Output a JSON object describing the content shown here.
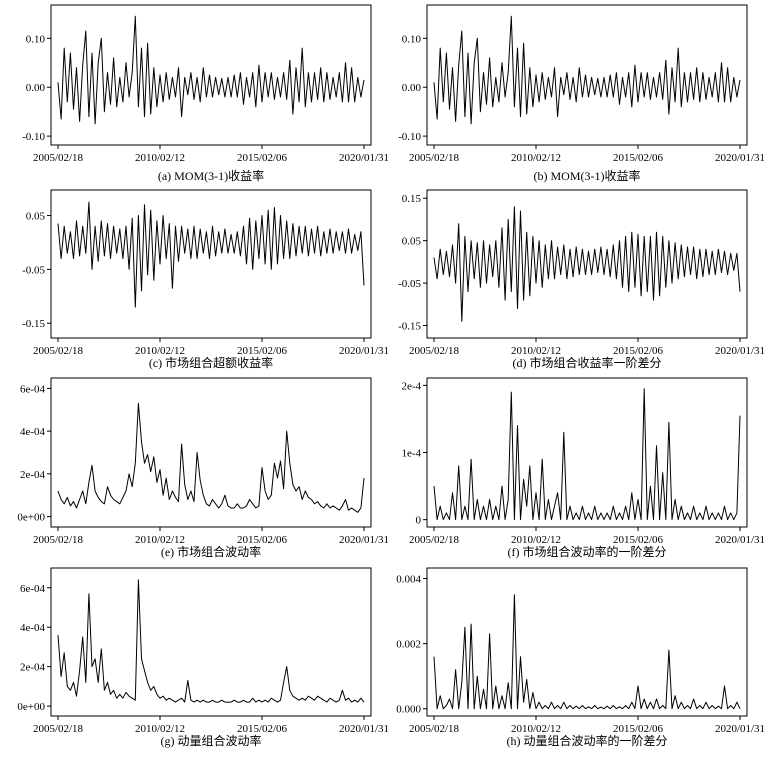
{
  "chart_data": [
    {
      "type": "line",
      "id": "a",
      "caption": "(a) MOM(3-1)收益率",
      "x_ticks": [
        "2005/02/18",
        "2010/02/12",
        "2015/02/06",
        "2020/01/31"
      ],
      "y_ticks": [
        {
          "v": -0.1,
          "label": "-0.10"
        },
        {
          "v": 0.0,
          "label": "0.00"
        },
        {
          "v": 0.1,
          "label": "0.10"
        }
      ],
      "ylim": [
        -0.11,
        0.16
      ],
      "series": [
        {
          "values": [
            0.01,
            -0.065,
            0.08,
            -0.03,
            0.07,
            -0.045,
            0.04,
            -0.07,
            0.045,
            0.115,
            -0.06,
            0.07,
            -0.075,
            0.05,
            0.1,
            -0.05,
            0.03,
            -0.035,
            0.06,
            -0.04,
            0.02,
            -0.03,
            0.05,
            -0.02,
            0.03,
            0.145,
            -0.04,
            0.08,
            -0.06,
            0.09,
            -0.055,
            0.04,
            -0.04,
            0.025,
            -0.03,
            0.03,
            -0.025,
            0.02,
            -0.02,
            0.04,
            -0.06,
            0.02,
            -0.015,
            0.03,
            -0.025,
            0.02,
            -0.03,
            0.04,
            -0.02,
            0.025,
            -0.02,
            0.02,
            -0.015,
            0.018,
            -0.02,
            0.02,
            -0.02,
            0.025,
            -0.02,
            0.03,
            -0.035,
            0.02,
            -0.02,
            0.03,
            -0.04,
            0.045,
            -0.03,
            0.03,
            -0.02,
            0.03,
            -0.025,
            0.02,
            -0.02,
            0.03,
            -0.025,
            0.055,
            -0.055,
            0.04,
            -0.03,
            0.08,
            -0.04,
            0.03,
            -0.03,
            0.03,
            -0.025,
            0.04,
            -0.03,
            0.03,
            -0.025,
            0.02,
            -0.02,
            0.03,
            -0.03,
            0.05,
            -0.03,
            0.04,
            -0.03,
            0.02,
            -0.02,
            0.015
          ]
        }
      ]
    },
    {
      "type": "line",
      "id": "b",
      "caption": "(b) MOM(3-1)收益率",
      "x_ticks": [
        "2005/02/18",
        "2010/02/12",
        "2015/02/06",
        "2020/01/31"
      ],
      "y_ticks": [
        {
          "v": -0.1,
          "label": "-0.10"
        },
        {
          "v": 0.0,
          "label": "0.00"
        },
        {
          "v": 0.1,
          "label": "0.10"
        }
      ],
      "ylim": [
        -0.11,
        0.16
      ],
      "series": [
        {
          "values": [
            0.01,
            -0.065,
            0.08,
            -0.03,
            0.07,
            -0.045,
            0.04,
            -0.07,
            0.045,
            0.115,
            -0.06,
            0.07,
            -0.075,
            0.05,
            0.1,
            -0.05,
            0.03,
            -0.035,
            0.06,
            -0.04,
            0.02,
            -0.03,
            0.05,
            -0.02,
            0.03,
            0.145,
            -0.04,
            0.08,
            -0.06,
            0.09,
            -0.055,
            0.04,
            -0.04,
            0.025,
            -0.03,
            0.03,
            -0.025,
            0.02,
            -0.02,
            0.04,
            -0.06,
            0.02,
            -0.015,
            0.03,
            -0.025,
            0.02,
            -0.03,
            0.04,
            -0.02,
            0.025,
            -0.02,
            0.02,
            -0.015,
            0.018,
            -0.02,
            0.02,
            -0.02,
            0.025,
            -0.02,
            0.03,
            -0.035,
            0.02,
            -0.02,
            0.03,
            -0.04,
            0.045,
            -0.03,
            0.03,
            -0.02,
            0.03,
            -0.025,
            0.02,
            -0.02,
            0.03,
            -0.025,
            0.055,
            -0.055,
            0.04,
            -0.03,
            0.08,
            -0.04,
            0.03,
            -0.03,
            0.03,
            -0.025,
            0.04,
            -0.03,
            0.03,
            -0.025,
            0.02,
            -0.02,
            0.03,
            -0.03,
            0.05,
            -0.03,
            0.04,
            -0.03,
            0.02,
            -0.02,
            0.015
          ]
        }
      ]
    },
    {
      "type": "line",
      "id": "c",
      "caption": "(c) 市场组合超额收益率",
      "x_ticks": [
        "2005/02/18",
        "2010/02/12",
        "2015/02/06",
        "2020/01/31"
      ],
      "y_ticks": [
        {
          "v": -0.15,
          "label": "-0.15"
        },
        {
          "v": -0.05,
          "label": "-0.05"
        },
        {
          "v": 0.05,
          "label": "0.05"
        }
      ],
      "ylim": [
        -0.17,
        0.09
      ],
      "series": [
        {
          "values": [
            0.035,
            -0.03,
            0.03,
            -0.02,
            0.02,
            -0.03,
            0.04,
            -0.025,
            0.03,
            -0.02,
            0.075,
            -0.05,
            0.03,
            -0.035,
            0.04,
            -0.025,
            0.035,
            -0.03,
            0.03,
            -0.02,
            0.025,
            -0.03,
            0.03,
            -0.05,
            0.045,
            -0.12,
            0.05,
            -0.09,
            0.07,
            -0.06,
            0.06,
            -0.07,
            0.04,
            -0.04,
            0.05,
            -0.03,
            0.035,
            -0.085,
            0.03,
            -0.035,
            0.03,
            -0.02,
            0.025,
            -0.03,
            0.03,
            -0.03,
            0.025,
            -0.02,
            0.02,
            -0.03,
            0.03,
            -0.025,
            0.02,
            -0.02,
            0.025,
            -0.02,
            0.015,
            -0.02,
            0.02,
            -0.025,
            0.03,
            -0.04,
            0.045,
            -0.05,
            0.04,
            -0.03,
            0.05,
            -0.04,
            0.06,
            -0.05,
            0.065,
            -0.04,
            0.05,
            -0.03,
            0.04,
            -0.03,
            0.035,
            -0.025,
            0.03,
            -0.02,
            0.03,
            -0.025,
            0.025,
            -0.02,
            0.03,
            -0.025,
            0.02,
            -0.02,
            0.025,
            -0.02,
            0.02,
            -0.015,
            0.02,
            -0.02,
            0.025,
            -0.02,
            0.015,
            -0.015,
            0.02,
            -0.08
          ]
        }
      ]
    },
    {
      "type": "line",
      "id": "d",
      "caption": "(d) 市场组合收益率一阶差分",
      "x_ticks": [
        "2005/02/18",
        "2010/02/12",
        "2015/02/06",
        "2020/01/31"
      ],
      "y_ticks": [
        {
          "v": -0.15,
          "label": "-0.15"
        },
        {
          "v": -0.05,
          "label": "-0.05"
        },
        {
          "v": 0.05,
          "label": "0.05"
        },
        {
          "v": 0.15,
          "label": "0.15"
        }
      ],
      "ylim": [
        -0.17,
        0.16
      ],
      "series": [
        {
          "values": [
            0.01,
            -0.04,
            0.03,
            -0.03,
            0.025,
            -0.035,
            0.04,
            -0.05,
            0.09,
            -0.14,
            0.06,
            -0.07,
            0.05,
            -0.04,
            0.045,
            -0.06,
            0.05,
            -0.05,
            0.04,
            -0.035,
            0.05,
            -0.06,
            0.08,
            -0.09,
            0.1,
            -0.07,
            0.13,
            -0.11,
            0.12,
            -0.09,
            0.07,
            -0.08,
            0.06,
            -0.05,
            0.05,
            -0.06,
            0.04,
            -0.04,
            0.05,
            -0.04,
            0.035,
            -0.03,
            0.04,
            -0.04,
            0.03,
            -0.035,
            0.035,
            -0.03,
            0.03,
            -0.03,
            0.025,
            -0.03,
            0.03,
            -0.025,
            0.035,
            -0.03,
            0.03,
            -0.035,
            0.04,
            -0.04,
            0.05,
            -0.06,
            0.06,
            -0.07,
            0.07,
            -0.06,
            0.065,
            -0.08,
            0.06,
            -0.07,
            0.06,
            -0.09,
            0.07,
            -0.08,
            0.06,
            -0.06,
            0.05,
            -0.05,
            0.045,
            -0.04,
            0.04,
            -0.035,
            0.035,
            -0.03,
            0.035,
            -0.04,
            0.03,
            -0.035,
            0.03,
            -0.03,
            0.025,
            -0.03,
            0.03,
            -0.025,
            0.025,
            -0.03,
            0.02,
            -0.02,
            0.02,
            -0.07
          ]
        }
      ]
    },
    {
      "type": "line",
      "id": "e",
      "caption": "(e) 市场组合波动率",
      "x_ticks": [
        "2005/02/18",
        "2010/02/12",
        "2015/02/06",
        "2020/01/31"
      ],
      "y_ticks": [
        {
          "v": 0.0,
          "label": "0e+00"
        },
        {
          "v": 0.0002,
          "label": "2e-04"
        },
        {
          "v": 0.0004,
          "label": "4e-04"
        },
        {
          "v": 0.0006,
          "label": "6e-04"
        }
      ],
      "ylim": [
        -3e-05,
        0.00063
      ],
      "series": [
        {
          "values": [
            0.00012,
            8e-05,
            6e-05,
            9e-05,
            5e-05,
            7e-05,
            4e-05,
            8e-05,
            0.00012,
            6e-05,
            0.00016,
            0.00024,
            0.00012,
            9e-05,
            7e-05,
            6e-05,
            0.00014,
            0.0001,
            8e-05,
            7e-05,
            6e-05,
            9e-05,
            0.00012,
            0.0002,
            0.00014,
            0.00025,
            0.00053,
            0.00035,
            0.00025,
            0.00029,
            0.00021,
            0.00028,
            0.00016,
            0.00022,
            0.0001,
            0.00018,
            8e-05,
            0.00012,
            9e-05,
            7e-05,
            0.00034,
            0.00015,
            8e-05,
            0.00012,
            7e-05,
            0.0003,
            0.00017,
            0.0001,
            6e-05,
            5e-05,
            8e-05,
            6e-05,
            4e-05,
            6e-05,
            0.0001,
            5e-05,
            4e-05,
            4e-05,
            6e-05,
            4e-05,
            4e-05,
            5e-05,
            8e-05,
            6e-05,
            4e-05,
            5e-05,
            0.00023,
            0.00012,
            8e-05,
            0.0001,
            0.00025,
            0.00018,
            0.00026,
            0.00013,
            0.0004,
            0.00025,
            0.00015,
            0.00012,
            0.00014,
            8e-05,
            0.00012,
            9e-05,
            8e-05,
            6e-05,
            7e-05,
            5e-05,
            4e-05,
            6e-05,
            4e-05,
            5e-05,
            4e-05,
            3e-05,
            5e-05,
            8e-05,
            3e-05,
            4e-05,
            3e-05,
            2e-05,
            4e-05,
            0.00018
          ]
        }
      ]
    },
    {
      "type": "line",
      "id": "f",
      "caption": "(f) 市场组合波动率的一阶差分",
      "x_ticks": [
        "2005/02/18",
        "2010/02/12",
        "2015/02/06",
        "2020/01/31"
      ],
      "y_ticks": [
        {
          "v": 0.0,
          "label": "0"
        },
        {
          "v": 0.0001,
          "label": "1e-4"
        },
        {
          "v": 0.0002,
          "label": "2e-4"
        }
      ],
      "ylim": [
        -5e-06,
        0.000205
      ],
      "series": [
        {
          "values": [
            5e-05,
            0.0,
            2e-05,
            0.0,
            1e-05,
            0.0,
            4e-05,
            0.0,
            8e-05,
            0.0,
            2e-05,
            0.0,
            9e-05,
            0.0,
            3e-05,
            0.0,
            2e-05,
            0.0,
            3e-05,
            0.0,
            2e-05,
            0.0,
            5e-05,
            0.0,
            3e-05,
            0.00019,
            0.0,
            0.00014,
            0.0,
            6e-05,
            2e-05,
            8e-05,
            0.0,
            4e-05,
            0.0,
            9e-05,
            0.0,
            3e-05,
            0.0,
            2e-05,
            4e-05,
            0.0,
            0.00013,
            0.0,
            2e-05,
            0.0,
            1e-05,
            0.0,
            2e-05,
            0.0,
            1e-05,
            0.0,
            2e-05,
            0.0,
            1e-05,
            0.0,
            1e-05,
            0.0,
            2e-05,
            0.0,
            1e-05,
            0.0,
            2e-05,
            0.0,
            4e-05,
            0.0,
            3e-05,
            0.0,
            0.000195,
            0.0,
            5e-05,
            0.0,
            0.00011,
            0.0,
            7e-05,
            0.0,
            0.000145,
            0.0,
            3e-05,
            0.0,
            2e-05,
            0.0,
            1e-05,
            0.0,
            2e-05,
            0.0,
            1e-05,
            0.0,
            2e-05,
            0.0,
            1e-05,
            0.0,
            1e-05,
            0.0,
            2e-05,
            0.0,
            1e-05,
            0.0,
            1e-05,
            0.000155
          ]
        }
      ]
    },
    {
      "type": "line",
      "id": "g",
      "caption": "(g) 动量组合波动率",
      "x_ticks": [
        "2005/02/18",
        "2010/02/12",
        "2015/02/06",
        "2020/01/31"
      ],
      "y_ticks": [
        {
          "v": 0.0,
          "label": "0e+00"
        },
        {
          "v": 0.0002,
          "label": "2e-04"
        },
        {
          "v": 0.0004,
          "label": "4e-04"
        },
        {
          "v": 0.0006,
          "label": "6e-04"
        }
      ],
      "ylim": [
        -3e-05,
        0.00068
      ],
      "series": [
        {
          "values": [
            0.00036,
            0.00015,
            0.00027,
            0.0001,
            8e-05,
            0.00012,
            5e-05,
            0.00018,
            0.00035,
            0.00012,
            0.00057,
            0.0002,
            0.00024,
            0.00012,
            0.00029,
            8e-05,
            0.00012,
            6e-05,
            8e-05,
            4e-05,
            6e-05,
            4e-05,
            7e-05,
            5e-05,
            4e-05,
            3e-05,
            0.00064,
            0.00024,
            0.00018,
            0.00012,
            8e-05,
            0.0001,
            6e-05,
            4e-05,
            5e-05,
            3e-05,
            4e-05,
            3e-05,
            2e-05,
            3e-05,
            4e-05,
            2e-05,
            0.00013,
            3e-05,
            2e-05,
            3e-05,
            2e-05,
            3e-05,
            2e-05,
            2e-05,
            3e-05,
            2e-05,
            2e-05,
            3e-05,
            2e-05,
            2e-05,
            2e-05,
            3e-05,
            2e-05,
            2e-05,
            3e-05,
            2e-05,
            2e-05,
            4e-05,
            2e-05,
            3e-05,
            2e-05,
            3e-05,
            2e-05,
            4e-05,
            3e-05,
            2e-05,
            3e-05,
            0.00012,
            0.0002,
            8e-05,
            5e-05,
            4e-05,
            3e-05,
            4e-05,
            3e-05,
            5e-05,
            4e-05,
            3e-05,
            5e-05,
            4e-05,
            3e-05,
            2e-05,
            4e-05,
            3e-05,
            2e-05,
            3e-05,
            8e-05,
            3e-05,
            4e-05,
            2e-05,
            3e-05,
            2e-05,
            4e-05,
            2e-05
          ]
        }
      ]
    },
    {
      "type": "line",
      "id": "h",
      "caption": "(h) 动量组合波动率的一阶差分",
      "x_ticks": [
        "2005/02/18",
        "2010/02/12",
        "2015/02/06",
        "2020/01/31"
      ],
      "y_ticks": [
        {
          "v": 0.0,
          "label": "0.000"
        },
        {
          "v": 0.002,
          "label": "0.002"
        },
        {
          "v": 0.004,
          "label": "0.004"
        }
      ],
      "ylim": [
        -0.0001,
        0.0042
      ],
      "series": [
        {
          "values": [
            0.0016,
            0.0,
            0.0004,
            0.0,
            0.0001,
            0.0003,
            0.0,
            0.0012,
            0.0,
            0.0008,
            0.0025,
            0.0,
            0.0026,
            0.0,
            0.001,
            0.0,
            0.0006,
            0.0,
            0.0023,
            0.0,
            0.0007,
            0.0,
            0.0004,
            0.0,
            0.0008,
            0.0,
            0.0035,
            0.0,
            0.0016,
            0.0002,
            0.0009,
            0.0,
            0.0005,
            0.0,
            0.0002,
            0.0,
            0.0001,
            0.0,
            0.0002,
            0.0,
            0.0001,
            0.0,
            0.0002,
            0.0,
            0.0001,
            0.0,
            8e-05,
            0.0,
            0.0001,
            0.0,
            6e-05,
            0.0,
            0.0001,
            0.0,
            5e-05,
            0.0,
            8e-05,
            0.0,
            0.0001,
            0.0,
            6e-05,
            0.0,
            0.0001,
            0.0,
            0.0002,
            0.0,
            0.0007,
            0.0,
            0.0003,
            0.0,
            0.0002,
            0.0,
            0.0003,
            0.0,
            0.0001,
            0.0,
            0.0018,
            0.0,
            0.0004,
            0.0,
            0.0002,
            0.0,
            0.0001,
            0.0,
            0.0003,
            0.0,
            0.0001,
            0.0,
            0.0002,
            0.0,
            0.0001,
            0.0,
            8e-05,
            0.0,
            0.0007,
            0.0,
            0.0001,
            0.0,
            0.0002,
            0.0
          ]
        }
      ]
    }
  ]
}
